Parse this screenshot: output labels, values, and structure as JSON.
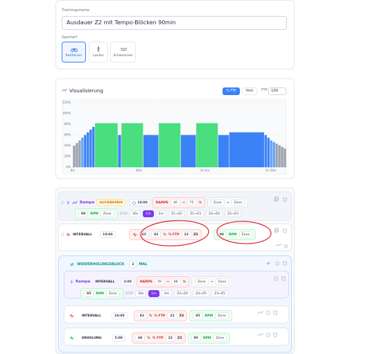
{
  "form": {
    "name_label": "Trainingsname",
    "name_value": "Ausdauer Z2 mit Tempo-Blöcken 90min",
    "sport_label": "Sportart",
    "sports": [
      "Radfahren",
      "Laufen",
      "Schwimmen"
    ]
  },
  "controls": {
    "modes": [
      "% FTP",
      "Watt"
    ],
    "ftp_label": "FTP",
    "ftp_value": 150
  },
  "chart_data": {
    "type": "bar",
    "title": "Visualisierung",
    "x": [
      0,
      1.25,
      2.5,
      3.75,
      5,
      6.25,
      7.5,
      8.75,
      10,
      20.5,
      22,
      32,
      39,
      49,
      56,
      66,
      71,
      87,
      88.25,
      89.5,
      90.75,
      92,
      93.25,
      94.5,
      95.75
    ],
    "values": [
      40,
      45,
      50,
      55,
      60,
      65,
      70,
      75,
      82,
      60,
      82,
      60,
      82,
      60,
      82,
      60,
      65,
      60,
      55,
      50,
      47,
      44,
      41,
      38,
      35
    ],
    "colors": [
      "#9ca3af",
      "#9ca3af",
      "#9ca3af",
      "#60a5fa",
      "#3b82f6",
      "#3b82f6",
      "#3b82f6",
      "#3b82f6",
      "#4ade80",
      "#3b82f6",
      "#4ade80",
      "#3b82f6",
      "#4ade80",
      "#3b82f6",
      "#4ade80",
      "#3b82f6",
      "#3b82f6",
      "#3b82f6",
      "#3b82f6",
      "#60a5fa",
      "#60a5fa",
      "#9ca3af",
      "#9ca3af",
      "#9ca3af",
      "#9ca3af"
    ],
    "xlim": [
      0,
      97
    ],
    "xticks": [
      {
        "value": 0,
        "label": "0m"
      },
      {
        "value": 30,
        "label": "30m"
      },
      {
        "value": 60,
        "label": "1h 0m"
      },
      {
        "value": 90,
        "label": "1h 30m"
      }
    ],
    "ylim": [
      0,
      120
    ],
    "yticks": [
      {
        "value": 0,
        "label": "0%"
      },
      {
        "value": 20,
        "label": "20%"
      },
      {
        "value": 40,
        "label": "40%"
      },
      {
        "value": 60,
        "label": "60%"
      },
      {
        "value": 80,
        "label": "80%"
      },
      {
        "value": 100,
        "label": "100%"
      },
      {
        "value": 120,
        "label": "120%"
      }
    ],
    "grid": true
  },
  "blocks": [
    {
      "title": "Rampe",
      "phase": "AUFWÄRMEN",
      "duration": "10:00",
      "mode": "RAMPE",
      "from": 40,
      "arrow": "→",
      "to": 75,
      "unit": "%",
      "zone_from": "Zone",
      "zone_arrow": "→",
      "zone_to": "Zone",
      "cadence": 90,
      "cadence_unit": "RPM",
      "cadence_zone": "Zone",
      "step_label": "STEP",
      "steps": [
        "30s",
        "1m",
        "2m"
      ],
      "presets": [
        "Z1→Z2",
        "Z1→Z3",
        "Z2→Z4",
        "Z2→Z3"
      ]
    },
    {
      "type": "INTERVALL",
      "duration": "10:00",
      "from": 65,
      "to": 82,
      "unit": "%",
      "target_unit": "% FTP",
      "ftp_value": 22,
      "zone": "Z3",
      "cadence": 90,
      "cadence_unit": "RPM",
      "cadence_zone": "Zone"
    },
    {
      "title": "WIEDERHOLUNGSBLOCK",
      "repeat": 3,
      "repeat_unit": "MAL",
      "children": [
        {
          "title": "Rampe",
          "type": "INTERVALL",
          "duration": "2:00",
          "mode": "RAMPE",
          "from": 76,
          "arrow": "→",
          "to": 88,
          "unit": "%",
          "zone_from": "Zone",
          "zone_arrow": "→",
          "zone_to": "Zone",
          "cadence": 95,
          "cadence_unit": "RPM",
          "cadence_zone": "Zone",
          "step_label": "STEP",
          "steps": [
            "30s",
            "1m",
            "2m"
          ],
          "presets": [
            "Z3→Z4",
            "Z4→Z5",
            "Z3→Z5"
          ]
        },
        {
          "type": "INTERVALL",
          "duration": "10:00",
          "value": 82,
          "unit": "%",
          "target_unit": "% FTP",
          "ftp_value": 22,
          "zone": "Z3",
          "cadence": 85,
          "cadence_unit": "RPM",
          "cadence_zone": "Zone"
        },
        {
          "type": "ERHOLUNG",
          "duration": "5:00",
          "value": 60,
          "unit": "%",
          "target_unit": "% FTP",
          "ftp_value": 22,
          "zone": "Z2",
          "cadence": 95,
          "cadence_unit": "RPM",
          "cadence_zone": "Zone"
        }
      ]
    }
  ]
}
